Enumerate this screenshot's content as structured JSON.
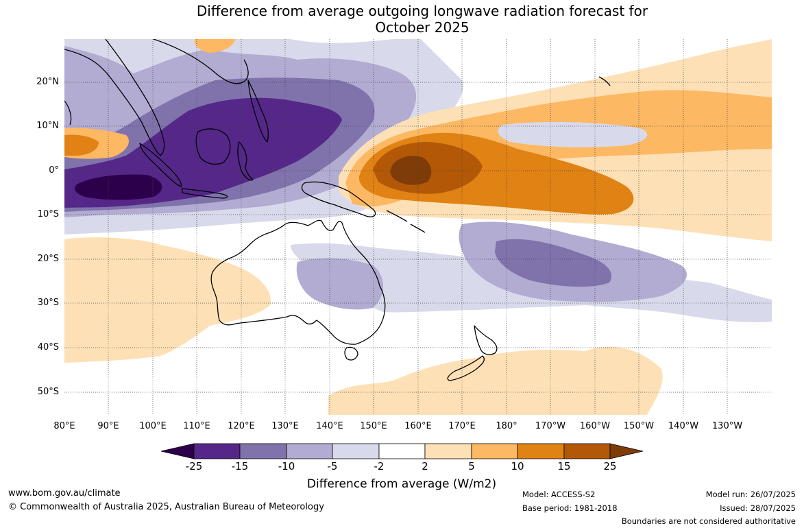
{
  "title": {
    "line1": "Difference from average outgoing longwave radiation forecast for",
    "line2": "October 2025"
  },
  "map": {
    "lat_labels": [
      "20°N",
      "10°N",
      "0°",
      "10°S",
      "20°S",
      "30°S",
      "40°S",
      "50°S"
    ],
    "lon_labels": [
      "80°E",
      "90°E",
      "100°E",
      "110°E",
      "120°E",
      "130°E",
      "140°E",
      "150°E",
      "160°E",
      "170°E",
      "180°",
      "170°W",
      "160°W",
      "150°W",
      "140°W",
      "130°W"
    ],
    "colors": {
      "neg25": "#2d004b",
      "neg15": "#542788",
      "neg10": "#8073ac",
      "neg5": "#b2abd2",
      "neg2": "#d8daeb",
      "zero": "#ffffff",
      "pos2": "#fee0b6",
      "pos5": "#fdb863",
      "pos10": "#e08214",
      "pos15": "#b35806",
      "pos25": "#7f3b08"
    }
  },
  "colorbar": {
    "ticks": [
      "-25",
      "-15",
      "-10",
      "-5",
      "-2",
      "2",
      "5",
      "10",
      "15",
      "25"
    ],
    "label": "Difference from average (W/m2)"
  },
  "footer": {
    "website": "www.bom.gov.au/climate",
    "copyright": "© Commonwealth of Australia 2025, Australian Bureau of Meteorology",
    "model": "Model: ACCESS-S2",
    "base_period": "Base period: 1981-2018",
    "model_run": "Model run: 26/07/2025",
    "issued": "Issued: 28/07/2025",
    "disclaimer": "Boundaries are not considered authoritative"
  }
}
